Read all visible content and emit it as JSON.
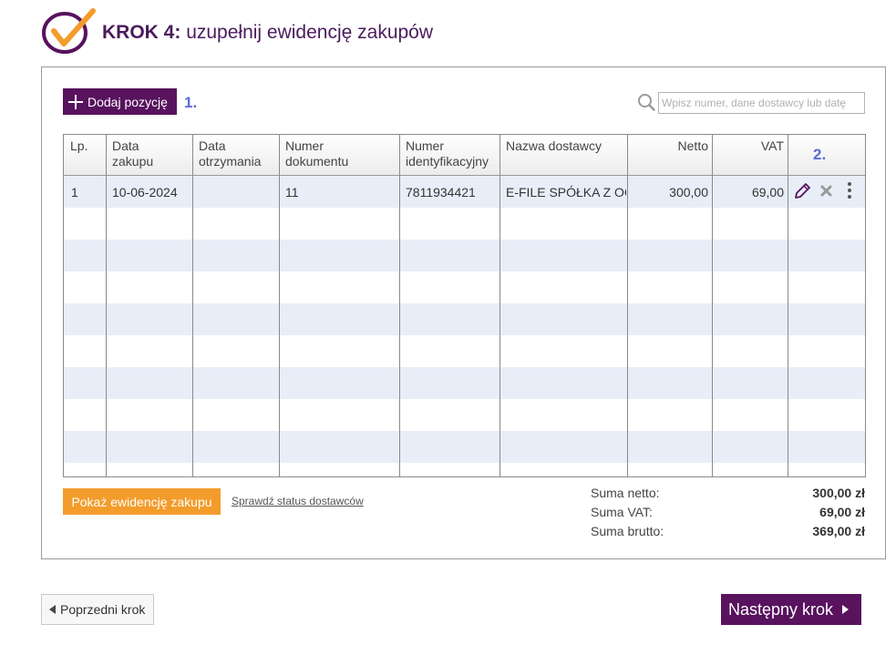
{
  "header": {
    "step_label": "KROK 4:",
    "step_title": "uzupełnij ewidencję zakupów"
  },
  "toolbar": {
    "add_label": "Dodaj pozycję",
    "marker_1": "1.",
    "marker_2": "2.",
    "search_placeholder": "Wpisz numer, dane dostawcy lub datę"
  },
  "table": {
    "columns": [
      "Lp.",
      "Data zakupu",
      "Data otrzymania",
      "Numer dokumentu",
      "Numer identyfikacyjny",
      "Nazwa dostawcy",
      "Netto",
      "VAT"
    ],
    "column_lines": [
      [
        "Lp.",
        ""
      ],
      [
        "Data",
        "zakupu"
      ],
      [
        "Data",
        "otrzymania"
      ],
      [
        "Numer",
        "dokumentu"
      ],
      [
        "Numer",
        "identyfikacyjny"
      ],
      [
        "Nazwa dostawcy",
        ""
      ],
      [
        "Netto",
        ""
      ],
      [
        "VAT",
        ""
      ]
    ],
    "rows": [
      {
        "lp": "1",
        "data_zakupu": "10-06-2024",
        "data_otrzymania": "",
        "numer_dokumentu": "11",
        "numer_identyfikacyjny": "7811934421",
        "nazwa_dostawcy": "E-FILE SPÓŁKA Z OGRANICZONĄ ODPOWIEDZIALNOŚCIĄ",
        "netto": "300,00",
        "vat": "69,00"
      }
    ],
    "row_actions": [
      "edit-icon",
      "delete-icon",
      "more-icon"
    ]
  },
  "footer": {
    "show_button": "Pokaż ewidencję zakupu",
    "check_link": "Sprawdź status dostawców",
    "sums": {
      "netto_label": "Suma netto:",
      "netto_value": "300,00 zł",
      "vat_label": "Suma VAT:",
      "vat_value": "69,00 zł",
      "brutto_label": "Suma brutto:",
      "brutto_value": "369,00 zł"
    }
  },
  "nav": {
    "prev_label": "Poprzedni krok",
    "next_label": "Następny krok"
  },
  "colors": {
    "brand_purple": "#58125e",
    "accent_orange": "#f39c2b",
    "marker_blue": "#5b6bd6",
    "row_stripe": "#e8eef8"
  }
}
